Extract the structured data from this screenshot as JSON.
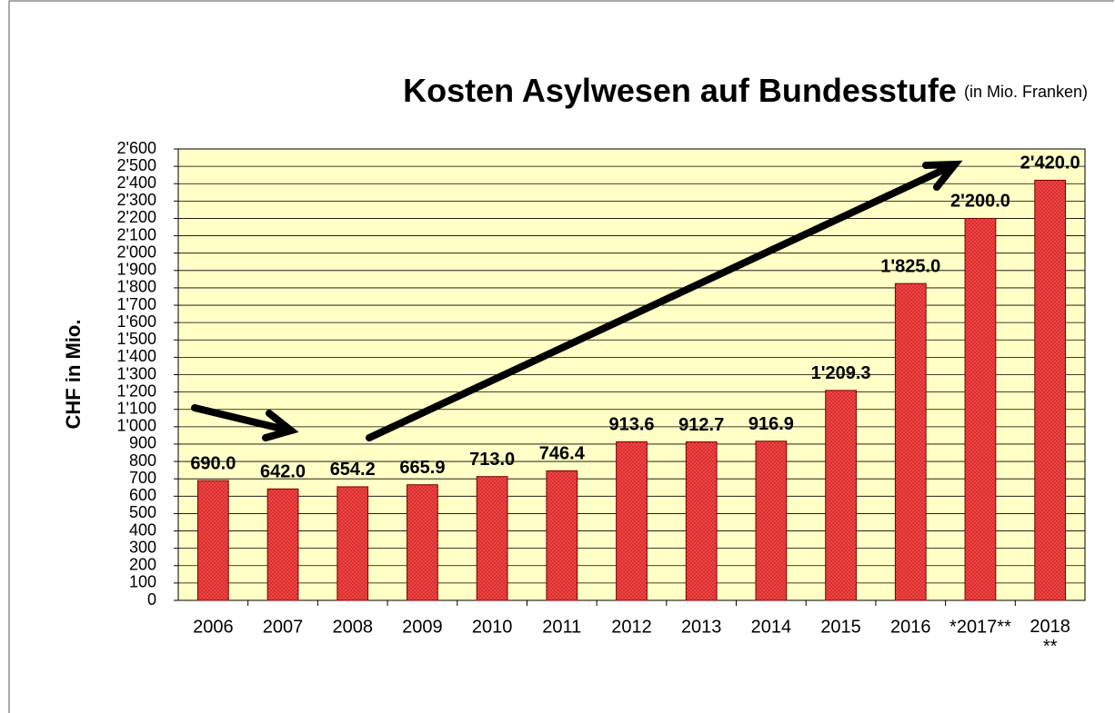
{
  "chart_data": {
    "type": "bar",
    "title": "Kosten Asylwesen auf Bundesstufe",
    "subtitle": "(in Mio. Franken)",
    "y_label": "CHF in Mio.",
    "categories": [
      "2006",
      "2007",
      "2008",
      "2009",
      "2010",
      "2011",
      "2012",
      "2013",
      "2014",
      "2015",
      "2016",
      "*2017**",
      "2018\n**"
    ],
    "values": [
      690.0,
      642.0,
      654.2,
      665.9,
      713.0,
      746.4,
      913.6,
      912.7,
      916.9,
      1209.3,
      1825.0,
      2200.0,
      2420.0
    ],
    "value_labels": [
      "690.0",
      "642.0",
      "654.2",
      "665.9",
      "713.0",
      "746.4",
      "913.6",
      "912.7",
      "916.9",
      "1'209.3",
      "1'825.0",
      "2'200.0",
      "2'420.0"
    ],
    "color": "#ee3b3b",
    "ylim": [
      0,
      2600
    ],
    "yticks": [
      0,
      100,
      200,
      300,
      400,
      500,
      600,
      700,
      800,
      900,
      {
        "value": 1000,
        "label": "1'000"
      },
      {
        "value": 1100,
        "label": "1'100"
      },
      {
        "value": 1200,
        "label": "1'200"
      },
      {
        "value": 1300,
        "label": "1'300"
      },
      {
        "value": 1400,
        "label": "1'400"
      },
      {
        "value": 1500,
        "label": "1'500"
      },
      {
        "value": 1600,
        "label": "1'600"
      },
      {
        "value": 1700,
        "label": "1'700"
      },
      {
        "value": 1800,
        "label": "1'800"
      },
      {
        "value": 1900,
        "label": "1'900"
      },
      {
        "value": 2000,
        "label": "2'000"
      },
      {
        "value": 2100,
        "label": "2'100"
      },
      {
        "value": 2200,
        "label": "2'200"
      },
      {
        "value": 2300,
        "label": "2'300"
      },
      {
        "value": 2400,
        "label": "2'400"
      },
      {
        "value": 2500,
        "label": "2'500"
      },
      {
        "value": 2600,
        "label": "2'600"
      }
    ],
    "grid": true
  }
}
